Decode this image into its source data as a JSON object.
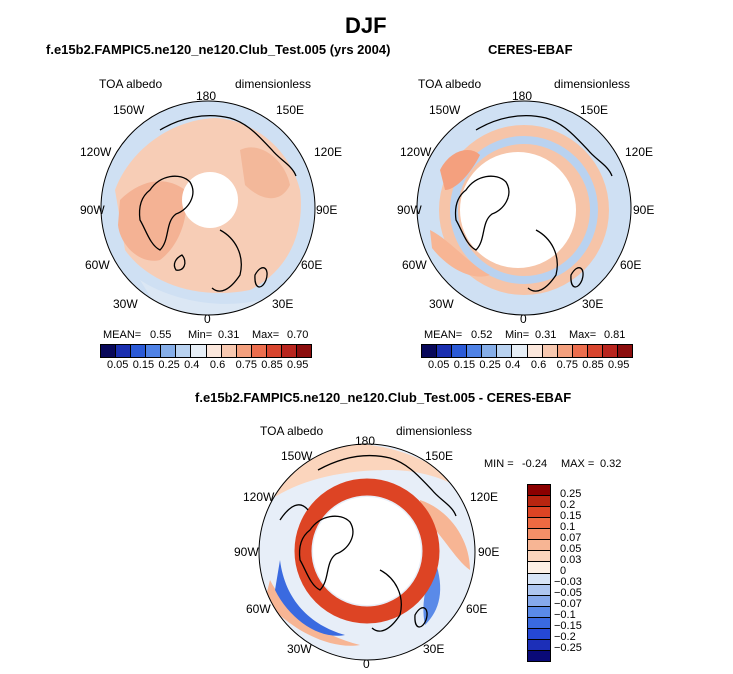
{
  "page": {
    "title": "DJF"
  },
  "colors": {
    "abs_scale": [
      "#08085a",
      "#1a2fb0",
      "#2b5ad6",
      "#4f82e6",
      "#86aee8",
      "#b9d2f0",
      "#e6eef6",
      "#fbe7dc",
      "#f7c8b0",
      "#f4a07e",
      "#ec6e4e",
      "#d8452e",
      "#b8251e",
      "#8b0d0d"
    ],
    "diff_scale": [
      "#0a0a78",
      "#1c2fb8",
      "#2548d6",
      "#3a6ae0",
      "#5a8ae8",
      "#86a9ec",
      "#aec6f0",
      "#d8e4f6",
      "#fdf0e6",
      "#fbd5bd",
      "#f7b594",
      "#f48f68",
      "#ee6a42",
      "#dd4424",
      "#b82510",
      "#8b0000"
    ]
  },
  "panels": {
    "model": {
      "subtitle": "f.e15b2.FAMPIC5.ne120_ne120.Club_Test.005 (yrs 2004)",
      "var_label": "TOA albedo",
      "units": "dimensionless",
      "lon_labels": {
        "n180": "180",
        "w150": "150W",
        "e150": "150E",
        "w120": "120W",
        "e120": "120E",
        "w90": "90W",
        "e90": "90E",
        "w60": "60W",
        "e60": "60E",
        "w30": "30W",
        "e30": "30E",
        "zero": "0"
      },
      "stats": {
        "mean_label": "MEAN=",
        "mean": "0.55",
        "min_label": "Min=",
        "min": "0.31",
        "max_label": "Max=",
        "max": "0.70"
      },
      "colorbar_ticks": [
        "0.05",
        "0.15",
        "0.25",
        "0.4",
        "0.6",
        "0.75",
        "0.85",
        "0.95"
      ]
    },
    "obs": {
      "subtitle": "CERES-EBAF",
      "var_label": "TOA albedo",
      "units": "dimensionless",
      "lon_labels": {
        "n180": "180",
        "w150": "150W",
        "e150": "150E",
        "w120": "120W",
        "e120": "120E",
        "w90": "90W",
        "e90": "90E",
        "w60": "60W",
        "e60": "60E",
        "w30": "30W",
        "e30": "30E",
        "zero": "0"
      },
      "stats": {
        "mean_label": "MEAN=",
        "mean": "0.52",
        "min_label": "Min=",
        "min": "0.31",
        "max_label": "Max=",
        "max": "0.81"
      },
      "colorbar_ticks": [
        "0.05",
        "0.15",
        "0.25",
        "0.4",
        "0.6",
        "0.75",
        "0.85",
        "0.95"
      ]
    },
    "diff": {
      "subtitle": "f.e15b2.FAMPIC5.ne120_ne120.Club_Test.005 - CERES-EBAF",
      "var_label": "TOA albedo",
      "units": "dimensionless",
      "lon_labels": {
        "n180": "180",
        "w150": "150W",
        "e150": "150E",
        "w120": "120W",
        "e120": "120E",
        "w90": "90W",
        "e90": "90E",
        "w60": "60W",
        "e60": "60E",
        "w30": "30W",
        "e30": "30E",
        "zero": "0"
      },
      "stats": {
        "min_label": "MIN =",
        "min": "-0.24",
        "max_label": "MAX =",
        "max": "0.32"
      },
      "colorbar_ticks": [
        "0.25",
        "0.2",
        "0.15",
        "0.1",
        "0.07",
        "0.05",
        "0.03",
        "0",
        "-0.03",
        "-0.05",
        "-0.07",
        "-0.1",
        "-0.15",
        "-0.2",
        "-0.25"
      ]
    }
  },
  "chart_data": [
    {
      "type": "heatmap",
      "title": "f.e15b2.FAMPIC5.ne120_ne120.Club_Test.005 (yrs 2004)",
      "projection": "north polar stereographic",
      "variable": "TOA albedo",
      "units": "dimensionless",
      "mean": 0.55,
      "min": 0.31,
      "max": 0.7,
      "contour_levels": [
        0.05,
        0.1,
        0.15,
        0.2,
        0.25,
        0.3,
        0.4,
        0.5,
        0.6,
        0.7,
        0.75,
        0.8,
        0.85,
        0.9,
        0.95
      ]
    },
    {
      "type": "heatmap",
      "title": "CERES-EBAF",
      "projection": "north polar stereographic",
      "variable": "TOA albedo",
      "units": "dimensionless",
      "mean": 0.52,
      "min": 0.31,
      "max": 0.81,
      "contour_levels": [
        0.05,
        0.1,
        0.15,
        0.2,
        0.25,
        0.3,
        0.4,
        0.5,
        0.6,
        0.7,
        0.75,
        0.8,
        0.85,
        0.9,
        0.95
      ]
    },
    {
      "type": "heatmap",
      "title": "f.e15b2.FAMPIC5.ne120_ne120.Club_Test.005 - CERES-EBAF",
      "projection": "north polar stereographic",
      "variable": "TOA albedo",
      "units": "dimensionless",
      "min": -0.24,
      "max": 0.32,
      "contour_levels": [
        -0.25,
        -0.2,
        -0.15,
        -0.1,
        -0.07,
        -0.05,
        -0.03,
        0,
        0.03,
        0.05,
        0.07,
        0.1,
        0.15,
        0.2,
        0.25
      ]
    }
  ]
}
